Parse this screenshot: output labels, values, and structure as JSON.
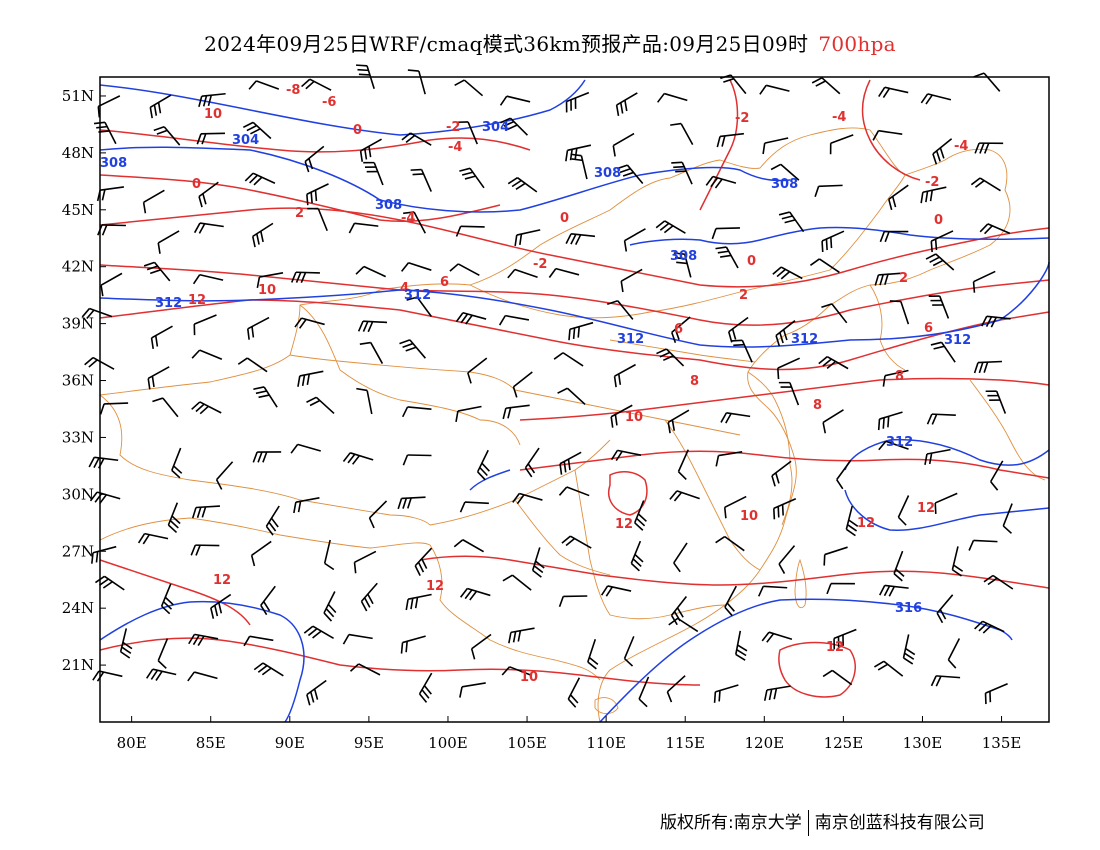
{
  "header": {
    "title": "2024年09月25日WRF/cmaq模式36km预报产品:09月25日09时",
    "level": "700hpa"
  },
  "map": {
    "lon_range": [
      78,
      138
    ],
    "lat_range": [
      18,
      52
    ],
    "lon_ticks": [
      "80E",
      "85E",
      "90E",
      "95E",
      "100E",
      "105E",
      "110E",
      "115E",
      "120E",
      "125E",
      "130E",
      "135E"
    ],
    "lat_ticks": [
      "21N",
      "24N",
      "27N",
      "30N",
      "33N",
      "36N",
      "39N",
      "42N",
      "45N",
      "48N",
      "51N"
    ],
    "colors": {
      "temperature": "#e03030",
      "height": "#2040e0",
      "border": "#e09040",
      "wind": "#000000"
    },
    "height_labels": [
      "304",
      "304",
      "308",
      "308",
      "308",
      "308",
      "308",
      "312",
      "312",
      "312",
      "312",
      "312",
      "312",
      "316"
    ],
    "temp_labels": [
      "-8",
      "-6",
      "-4",
      "-4",
      "-4",
      "-4",
      "-2",
      "-2",
      "-2",
      "-2",
      "0",
      "0",
      "0",
      "0",
      "0",
      "2",
      "2",
      "2",
      "4",
      "6",
      "6",
      "6",
      "8",
      "8",
      "8",
      "10",
      "10",
      "10",
      "10",
      "10",
      "12",
      "12",
      "12",
      "12",
      "12",
      "12",
      "12"
    ]
  },
  "footer": {
    "left": "版权所有:南京大学",
    "right": "南京创蓝科技有限公司"
  }
}
